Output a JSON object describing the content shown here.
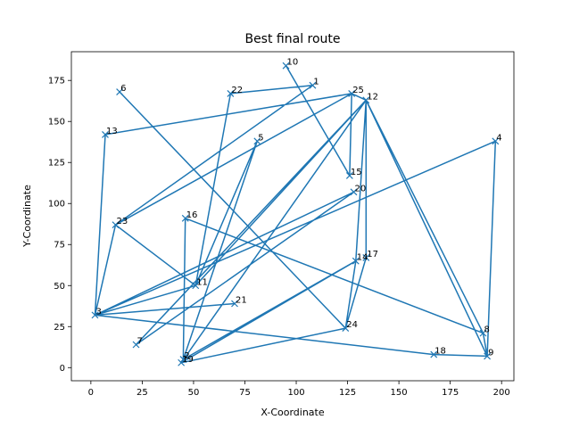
{
  "chart_data": {
    "type": "line",
    "title": "Best final route",
    "xlabel": "X-Coordinate",
    "ylabel": "Y-Coordinate",
    "xlim": [
      -9.5,
      206
    ],
    "ylim": [
      -8,
      192.5
    ],
    "xticks": [
      0,
      25,
      50,
      75,
      100,
      125,
      150,
      175,
      200
    ],
    "yticks": [
      0,
      25,
      50,
      75,
      100,
      125,
      150,
      175
    ],
    "grid": false,
    "line_color": "#1f77b4",
    "marker": "x",
    "points": [
      {
        "label": "1",
        "x": 108,
        "y": 172
      },
      {
        "label": "2",
        "x": 45,
        "y": 5
      },
      {
        "label": "3",
        "x": 2,
        "y": 32
      },
      {
        "label": "4",
        "x": 197,
        "y": 138
      },
      {
        "label": "5",
        "x": 81,
        "y": 138
      },
      {
        "label": "6",
        "x": 14,
        "y": 168
      },
      {
        "label": "7",
        "x": 22,
        "y": 14
      },
      {
        "label": "8",
        "x": 191,
        "y": 21
      },
      {
        "label": "9",
        "x": 193,
        "y": 7
      },
      {
        "label": "10",
        "x": 95,
        "y": 184
      },
      {
        "label": "11",
        "x": 51,
        "y": 50
      },
      {
        "label": "12",
        "x": 134,
        "y": 163
      },
      {
        "label": "13",
        "x": 7,
        "y": 142
      },
      {
        "label": "14",
        "x": 129,
        "y": 65
      },
      {
        "label": "15",
        "x": 126,
        "y": 117
      },
      {
        "label": "16",
        "x": 46,
        "y": 91
      },
      {
        "label": "17",
        "x": 134,
        "y": 67
      },
      {
        "label": "18",
        "x": 167,
        "y": 8
      },
      {
        "label": "19",
        "x": 44,
        "y": 3
      },
      {
        "label": "20",
        "x": 128,
        "y": 107
      },
      {
        "label": "21",
        "x": 70,
        "y": 39
      },
      {
        "label": "22",
        "x": 68,
        "y": 167
      },
      {
        "label": "23",
        "x": 12,
        "y": 87
      },
      {
        "label": "24",
        "x": 124,
        "y": 24
      },
      {
        "label": "25",
        "x": 127,
        "y": 167
      }
    ],
    "route": [
      "6",
      "24",
      "14",
      "2",
      "16",
      "8",
      "12",
      "17",
      "24",
      "19",
      "14",
      "12",
      "11",
      "3",
      "4",
      "9",
      "12",
      "7",
      "20",
      "3",
      "21",
      "3",
      "18",
      "9",
      "8",
      "12",
      "25",
      "13",
      "3",
      "23",
      "1",
      "22",
      "11",
      "5",
      "2",
      "19",
      "12",
      "11",
      "23",
      "25",
      "15",
      "10"
    ]
  }
}
